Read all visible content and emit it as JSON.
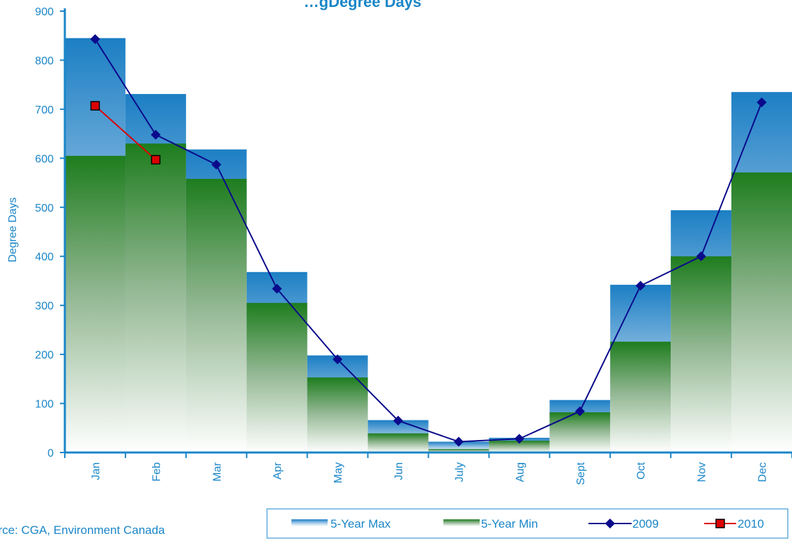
{
  "source_note": "urce: CGA, Environment Canada",
  "colors": {
    "axis": "#1a86c8",
    "max_top": "#1c7fc4",
    "min_top": "#1a7a1a",
    "series_2009": "#0a0a8c",
    "series_2010": "#dd0000"
  },
  "chart_data": {
    "type": "bar",
    "title": "…gDegree Days",
    "xlabel": "",
    "ylabel": "Degree Days",
    "ylim": [
      0,
      900
    ],
    "yticks": [
      "0",
      "100",
      "200",
      "300",
      "400",
      "500",
      "600",
      "700",
      "800",
      "900"
    ],
    "categories": [
      "Jan",
      "Feb",
      "Mar",
      "Apr",
      "May",
      "Jun",
      "July",
      "Aug",
      "Sept",
      "Oct",
      "Nov",
      "Dec"
    ],
    "series": [
      {
        "name": "5-Year Max",
        "kind": "bar",
        "values": [
          845,
          731,
          618,
          368,
          198,
          66,
          22,
          30,
          107,
          342,
          494,
          735
        ]
      },
      {
        "name": "5-Year Min",
        "kind": "bar",
        "values": [
          605,
          630,
          558,
          305,
          153,
          39,
          7,
          24,
          82,
          226,
          400,
          571
        ]
      },
      {
        "name": "2009",
        "kind": "line",
        "values": [
          843,
          648,
          587,
          334,
          190,
          65,
          22,
          28,
          84,
          340,
          400,
          714
        ]
      },
      {
        "name": "2010",
        "kind": "line",
        "values": [
          707,
          597,
          null,
          null,
          null,
          null,
          null,
          null,
          null,
          null,
          null,
          null
        ]
      }
    ],
    "grid": false,
    "legend_position": "bottom-right"
  }
}
